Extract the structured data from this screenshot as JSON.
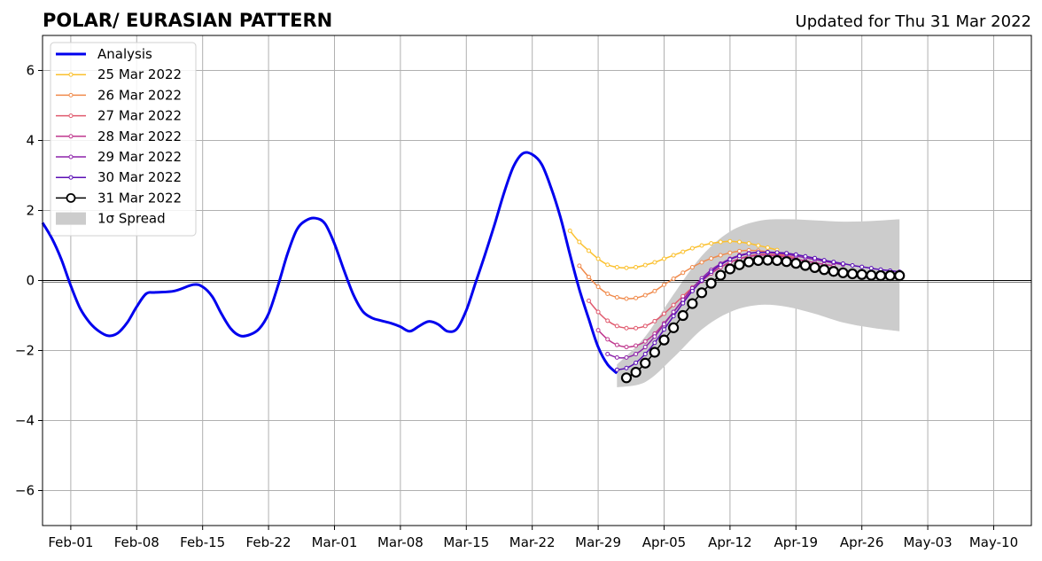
{
  "chart_data": {
    "type": "line",
    "title": "POLAR/ EURASIAN  PATTERN",
    "updated": "Updated for Thu 31 Mar 2022",
    "xlabel": "",
    "ylabel": "",
    "x_axis": {
      "type": "date",
      "range": [
        "2022-01-29",
        "2022-05-14"
      ],
      "ticks": [
        "2022-02-01",
        "2022-02-08",
        "2022-02-15",
        "2022-02-22",
        "2022-03-01",
        "2022-03-08",
        "2022-03-15",
        "2022-03-22",
        "2022-03-29",
        "2022-04-05",
        "2022-04-12",
        "2022-04-19",
        "2022-04-26",
        "2022-05-03",
        "2022-05-10"
      ],
      "tick_labels": [
        "Feb-01",
        "Feb-08",
        "Feb-15",
        "Feb-22",
        "Mar-01",
        "Mar-08",
        "Mar-15",
        "Mar-22",
        "Mar-29",
        "Apr-05",
        "Apr-12",
        "Apr-19",
        "Apr-26",
        "May-03",
        "May-10"
      ]
    },
    "y_axis": {
      "range": [
        -7,
        7
      ],
      "ticks": [
        -6,
        -4,
        -2,
        0,
        2,
        4,
        6
      ],
      "tick_labels": [
        "−6",
        "−4",
        "−2",
        "0",
        "2",
        "4",
        "6"
      ]
    },
    "grid": true,
    "legend_position": "top-left",
    "spread": {
      "name": "1σ Spread",
      "color": "#cccccc",
      "x": [
        "2022-03-31",
        "2022-04-03",
        "2022-04-06",
        "2022-04-09",
        "2022-04-12",
        "2022-04-15",
        "2022-04-18",
        "2022-04-21",
        "2022-04-24",
        "2022-04-27",
        "2022-04-30"
      ],
      "upper": [
        -2.4,
        -1.6,
        -0.4,
        0.7,
        1.4,
        1.7,
        1.75,
        1.72,
        1.68,
        1.7,
        1.75
      ],
      "lower": [
        -3.05,
        -2.9,
        -2.2,
        -1.4,
        -0.9,
        -0.7,
        -0.75,
        -0.95,
        -1.2,
        -1.35,
        -1.45
      ]
    },
    "series": [
      {
        "name": "Analysis",
        "color": "#0000ee",
        "style": "line",
        "x": [
          "2022-01-29",
          "2022-01-30",
          "2022-01-31",
          "2022-02-01",
          "2022-02-02",
          "2022-02-03",
          "2022-02-04",
          "2022-02-05",
          "2022-02-06",
          "2022-02-07",
          "2022-02-08",
          "2022-02-09",
          "2022-02-10",
          "2022-02-12",
          "2022-02-14",
          "2022-02-15",
          "2022-02-16",
          "2022-02-17",
          "2022-02-18",
          "2022-02-19",
          "2022-02-20",
          "2022-02-21",
          "2022-02-22",
          "2022-02-23",
          "2022-02-24",
          "2022-02-25",
          "2022-02-26",
          "2022-02-27",
          "2022-02-28",
          "2022-03-01",
          "2022-03-02",
          "2022-03-03",
          "2022-03-04",
          "2022-03-05",
          "2022-03-06",
          "2022-03-07",
          "2022-03-08",
          "2022-03-09",
          "2022-03-10",
          "2022-03-11",
          "2022-03-12",
          "2022-03-13",
          "2022-03-14",
          "2022-03-15",
          "2022-03-16",
          "2022-03-17",
          "2022-03-18",
          "2022-03-19",
          "2022-03-20",
          "2022-03-21",
          "2022-03-22",
          "2022-03-23",
          "2022-03-24",
          "2022-03-25",
          "2022-03-26",
          "2022-03-27",
          "2022-03-28",
          "2022-03-29",
          "2022-03-30",
          "2022-03-31"
        ],
        "y": [
          1.65,
          1.2,
          0.6,
          -0.15,
          -0.8,
          -1.2,
          -1.45,
          -1.58,
          -1.5,
          -1.2,
          -0.75,
          -0.38,
          -0.34,
          -0.3,
          -0.12,
          -0.18,
          -0.45,
          -0.95,
          -1.38,
          -1.58,
          -1.55,
          -1.38,
          -0.95,
          -0.15,
          0.75,
          1.45,
          1.72,
          1.78,
          1.62,
          1.05,
          0.3,
          -0.4,
          -0.88,
          -1.07,
          -1.15,
          -1.22,
          -1.32,
          -1.45,
          -1.3,
          -1.17,
          -1.25,
          -1.45,
          -1.38,
          -0.85,
          -0.05,
          0.75,
          1.6,
          2.5,
          3.25,
          3.63,
          3.6,
          3.32,
          2.65,
          1.8,
          0.75,
          -0.25,
          -1.1,
          -1.9,
          -2.4,
          -2.65
        ]
      },
      {
        "name": "25 Mar 2022",
        "color": "#fbc02d",
        "style": "line-dot",
        "x": [
          "2022-03-26",
          "2022-03-27",
          "2022-03-28",
          "2022-03-29",
          "2022-03-30",
          "2022-03-31",
          "2022-04-01",
          "2022-04-02",
          "2022-04-03",
          "2022-04-04",
          "2022-04-05",
          "2022-04-06",
          "2022-04-07",
          "2022-04-08",
          "2022-04-09",
          "2022-04-10",
          "2022-04-11",
          "2022-04-12",
          "2022-04-13",
          "2022-04-14",
          "2022-04-15",
          "2022-04-16",
          "2022-04-17"
        ],
        "y": [
          1.42,
          1.1,
          0.85,
          0.62,
          0.45,
          0.38,
          0.36,
          0.38,
          0.44,
          0.52,
          0.62,
          0.72,
          0.82,
          0.92,
          1.0,
          1.06,
          1.1,
          1.12,
          1.1,
          1.06,
          1.0,
          0.94,
          0.87
        ]
      },
      {
        "name": "26 Mar 2022",
        "color": "#f08a4b",
        "style": "line-dot",
        "x": [
          "2022-03-27",
          "2022-03-28",
          "2022-03-29",
          "2022-03-30",
          "2022-03-31",
          "2022-04-01",
          "2022-04-02",
          "2022-04-03",
          "2022-04-04",
          "2022-04-05",
          "2022-04-06",
          "2022-04-07",
          "2022-04-08",
          "2022-04-09",
          "2022-04-10",
          "2022-04-11",
          "2022-04-12",
          "2022-04-13",
          "2022-04-14",
          "2022-04-15",
          "2022-04-16",
          "2022-04-17",
          "2022-04-18"
        ],
        "y": [
          0.42,
          0.1,
          -0.18,
          -0.38,
          -0.48,
          -0.52,
          -0.5,
          -0.42,
          -0.3,
          -0.12,
          0.05,
          0.22,
          0.38,
          0.52,
          0.63,
          0.72,
          0.79,
          0.84,
          0.86,
          0.85,
          0.82,
          0.77,
          0.7
        ]
      },
      {
        "name": "27 Mar 2022",
        "color": "#e05a6e",
        "style": "line-dot",
        "x": [
          "2022-03-28",
          "2022-03-29",
          "2022-03-30",
          "2022-03-31",
          "2022-04-01",
          "2022-04-02",
          "2022-04-03",
          "2022-04-04",
          "2022-04-05",
          "2022-04-06",
          "2022-04-07",
          "2022-04-08",
          "2022-04-09",
          "2022-04-10",
          "2022-04-11",
          "2022-04-12",
          "2022-04-13",
          "2022-04-14",
          "2022-04-15",
          "2022-04-16",
          "2022-04-17",
          "2022-04-18",
          "2022-04-19"
        ],
        "y": [
          -0.58,
          -0.9,
          -1.15,
          -1.3,
          -1.36,
          -1.36,
          -1.3,
          -1.16,
          -0.95,
          -0.7,
          -0.45,
          -0.2,
          0.02,
          0.22,
          0.38,
          0.52,
          0.62,
          0.7,
          0.74,
          0.75,
          0.73,
          0.7,
          0.65
        ]
      },
      {
        "name": "28 Mar 2022",
        "color": "#c0398f",
        "style": "line-dot",
        "x": [
          "2022-03-29",
          "2022-03-30",
          "2022-03-31",
          "2022-04-01",
          "2022-04-02",
          "2022-04-03",
          "2022-04-04",
          "2022-04-05",
          "2022-04-06",
          "2022-04-07",
          "2022-04-08",
          "2022-04-09",
          "2022-04-10",
          "2022-04-11",
          "2022-04-12",
          "2022-04-13",
          "2022-04-14",
          "2022-04-15",
          "2022-04-16",
          "2022-04-17",
          "2022-04-18",
          "2022-04-19",
          "2022-04-20",
          "2022-04-21",
          "2022-04-22",
          "2022-04-23"
        ],
        "y": [
          -1.42,
          -1.68,
          -1.84,
          -1.9,
          -1.86,
          -1.74,
          -1.52,
          -1.22,
          -0.9,
          -0.58,
          -0.28,
          -0.02,
          0.2,
          0.38,
          0.52,
          0.62,
          0.68,
          0.72,
          0.72,
          0.7,
          0.66,
          0.61,
          0.56,
          0.51,
          0.46,
          0.42
        ]
      },
      {
        "name": "29 Mar 2022",
        "color": "#8e24aa",
        "style": "line-dot",
        "x": [
          "2022-03-30",
          "2022-03-31",
          "2022-04-01",
          "2022-04-02",
          "2022-04-03",
          "2022-04-04",
          "2022-04-05",
          "2022-04-06",
          "2022-04-07",
          "2022-04-08",
          "2022-04-09",
          "2022-04-10",
          "2022-04-11",
          "2022-04-12",
          "2022-04-13",
          "2022-04-14",
          "2022-04-15",
          "2022-04-16",
          "2022-04-17",
          "2022-04-18",
          "2022-04-19",
          "2022-04-20",
          "2022-04-21",
          "2022-04-22",
          "2022-04-23",
          "2022-04-24"
        ],
        "y": [
          -2.1,
          -2.2,
          -2.2,
          -2.1,
          -1.9,
          -1.6,
          -1.25,
          -0.9,
          -0.55,
          -0.22,
          0.06,
          0.3,
          0.48,
          0.62,
          0.72,
          0.78,
          0.8,
          0.8,
          0.78,
          0.75,
          0.7,
          0.65,
          0.6,
          0.55,
          0.5,
          0.45
        ]
      },
      {
        "name": "30 Mar 2022",
        "color": "#5b0fb5",
        "style": "line-dot",
        "x": [
          "2022-03-31",
          "2022-04-01",
          "2022-04-02",
          "2022-04-03",
          "2022-04-04",
          "2022-04-05",
          "2022-04-06",
          "2022-04-07",
          "2022-04-08",
          "2022-04-09",
          "2022-04-10",
          "2022-04-11",
          "2022-04-12",
          "2022-04-13",
          "2022-04-14",
          "2022-04-15",
          "2022-04-16",
          "2022-04-17",
          "2022-04-18",
          "2022-04-19",
          "2022-04-20",
          "2022-04-21",
          "2022-04-22",
          "2022-04-23",
          "2022-04-24",
          "2022-04-25",
          "2022-04-26",
          "2022-04-27",
          "2022-04-28",
          "2022-04-29",
          "2022-04-30"
        ],
        "y": [
          -2.55,
          -2.5,
          -2.35,
          -2.1,
          -1.78,
          -1.4,
          -1.02,
          -0.65,
          -0.3,
          0.0,
          0.25,
          0.45,
          0.6,
          0.7,
          0.77,
          0.8,
          0.81,
          0.8,
          0.78,
          0.74,
          0.69,
          0.64,
          0.58,
          0.53,
          0.48,
          0.43,
          0.39,
          0.35,
          0.31,
          0.28,
          0.25
        ]
      },
      {
        "name": "31 Mar 2022",
        "color": "#000000",
        "style": "line-circle",
        "x": [
          "2022-04-01",
          "2022-04-02",
          "2022-04-03",
          "2022-04-04",
          "2022-04-05",
          "2022-04-06",
          "2022-04-07",
          "2022-04-08",
          "2022-04-09",
          "2022-04-10",
          "2022-04-11",
          "2022-04-12",
          "2022-04-13",
          "2022-04-14",
          "2022-04-15",
          "2022-04-16",
          "2022-04-17",
          "2022-04-18",
          "2022-04-19",
          "2022-04-20",
          "2022-04-21",
          "2022-04-22",
          "2022-04-23",
          "2022-04-24",
          "2022-04-25",
          "2022-04-26",
          "2022-04-27",
          "2022-04-28",
          "2022-04-29",
          "2022-04-30"
        ],
        "y": [
          -2.78,
          -2.62,
          -2.36,
          -2.05,
          -1.7,
          -1.35,
          -1.0,
          -0.66,
          -0.35,
          -0.08,
          0.15,
          0.33,
          0.45,
          0.53,
          0.57,
          0.58,
          0.57,
          0.54,
          0.49,
          0.43,
          0.37,
          0.31,
          0.26,
          0.22,
          0.19,
          0.17,
          0.15,
          0.14,
          0.14,
          0.14
        ]
      }
    ]
  }
}
